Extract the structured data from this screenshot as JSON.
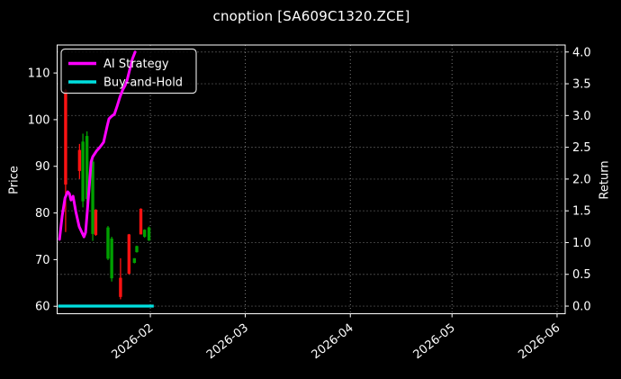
{
  "header": {
    "title": "cnoption [SA609C1320.ZCE]"
  },
  "legend": {
    "position": "upper-left",
    "items": [
      {
        "label": "AI Strategy",
        "color": "#ff00ff"
      },
      {
        "label": "Buy-and-Hold",
        "color": "#00e0e0"
      }
    ]
  },
  "colors": {
    "background": "#000000",
    "text": "#ffffff",
    "spine": "#ffffff",
    "grid": "#8a8a8a",
    "candle_up": "#00a000",
    "candle_down": "#ff1212",
    "ai_line": "#ff00ff",
    "bh_line": "#00e0e0",
    "legend_bg": "rgba(0,0,0,0.8)",
    "legend_border": "#d9d9d9"
  },
  "chart_data": {
    "type": "candlestick+line",
    "title": "cnoption [SA609C1320.ZCE]",
    "grid": "dotted, horizontal at right-axis ticks, vertical at month ticks",
    "x_axis": {
      "unit": "days since 2026-01-01",
      "domain": [
        3.5,
        153.4
      ],
      "ticks": [
        {
          "t": 31,
          "label": "2026-02"
        },
        {
          "t": 59,
          "label": "2026-03"
        },
        {
          "t": 90,
          "label": "2026-04"
        },
        {
          "t": 120,
          "label": "2026-05"
        },
        {
          "t": 151,
          "label": "2026-06"
        }
      ]
    },
    "left_axis": {
      "label": "Price",
      "ticks": [
        60,
        70,
        80,
        90,
        100,
        110
      ],
      "range": [
        58.4,
        116.0
      ]
    },
    "right_axis": {
      "label": "Return",
      "ticks": [
        0.0,
        0.5,
        1.0,
        1.5,
        2.0,
        2.5,
        3.0,
        3.5,
        4.0
      ],
      "range": [
        -0.12,
        4.11
      ]
    },
    "candles": [
      {
        "t": 6.0,
        "date": "2026-01-07",
        "o": 106.3,
        "h": 106.6,
        "l": 75.9,
        "c": 86.1
      },
      {
        "t": 10.1,
        "date": "2026-01-11",
        "o": 93.5,
        "h": 94.8,
        "l": 87.3,
        "c": 89.0
      },
      {
        "t": 11.1,
        "date": "2026-01-12",
        "o": 82.5,
        "h": 97.0,
        "l": 81.2,
        "c": 95.3
      },
      {
        "t": 12.3,
        "date": "2026-01-13",
        "o": 83.0,
        "h": 97.5,
        "l": 82.0,
        "c": 96.5
      },
      {
        "t": 14.0,
        "date": "2026-01-15",
        "o": 75.5,
        "h": 92.2,
        "l": 74.0,
        "c": 91.0
      },
      {
        "t": 14.9,
        "date": "2026-01-16",
        "o": 80.7,
        "h": 80.8,
        "l": 75.1,
        "c": 75.3
      },
      {
        "t": 18.5,
        "date": "2026-01-19",
        "o": 70.2,
        "h": 77.2,
        "l": 69.9,
        "c": 76.9
      },
      {
        "t": 19.6,
        "date": "2026-01-21",
        "o": 66.0,
        "h": 74.9,
        "l": 65.3,
        "c": 74.5
      },
      {
        "t": 22.2,
        "date": "2026-01-23",
        "o": 66.1,
        "h": 70.3,
        "l": 61.5,
        "c": 62.0
      },
      {
        "t": 24.7,
        "date": "2026-01-26",
        "o": 75.4,
        "h": 75.5,
        "l": 66.8,
        "c": 67.0
      },
      {
        "t": 26.3,
        "date": "2026-01-27",
        "o": 69.3,
        "h": 70.3,
        "l": 69.2,
        "c": 70.3
      },
      {
        "t": 27.0,
        "date": "2026-01-28",
        "o": 71.6,
        "h": 73.0,
        "l": 71.5,
        "c": 72.9
      },
      {
        "t": 28.2,
        "date": "2026-01-29",
        "o": 80.9,
        "h": 81.0,
        "l": 75.4,
        "c": 75.4
      },
      {
        "t": 29.3,
        "date": "2026-01-30",
        "o": 74.9,
        "h": 76.5,
        "l": 74.7,
        "c": 76.4
      },
      {
        "t": 30.6,
        "date": "2026-01-31",
        "o": 74.1,
        "h": 77.1,
        "l": 74.0,
        "c": 76.9
      }
    ],
    "series": [
      {
        "name": "AI Strategy",
        "axis": "right",
        "color": "#ff00ff",
        "points": [
          [
            4.2,
            1.05
          ],
          [
            5.0,
            1.42
          ],
          [
            5.8,
            1.7
          ],
          [
            6.6,
            1.8
          ],
          [
            7.1,
            1.77
          ],
          [
            7.6,
            1.67
          ],
          [
            8.2,
            1.73
          ],
          [
            9.0,
            1.49
          ],
          [
            10.0,
            1.25
          ],
          [
            11.4,
            1.09
          ],
          [
            11.9,
            1.16
          ],
          [
            12.4,
            1.49
          ],
          [
            13.0,
            1.91
          ],
          [
            13.5,
            2.27
          ],
          [
            14.0,
            2.35
          ],
          [
            15.1,
            2.44
          ],
          [
            16.1,
            2.5
          ],
          [
            17.2,
            2.58
          ],
          [
            17.7,
            2.7
          ],
          [
            18.3,
            2.84
          ],
          [
            18.8,
            2.95
          ],
          [
            19.6,
            2.99
          ],
          [
            20.4,
            3.02
          ],
          [
            21.2,
            3.15
          ],
          [
            22.0,
            3.29
          ],
          [
            22.8,
            3.4
          ],
          [
            23.6,
            3.48
          ],
          [
            24.1,
            3.55
          ],
          [
            24.9,
            3.72
          ],
          [
            25.7,
            3.89
          ],
          [
            26.5,
            4.0
          ]
        ]
      },
      {
        "name": "Buy-and-Hold",
        "axis": "right",
        "color": "#00e0e0",
        "points": [
          [
            3.8,
            0.0
          ],
          [
            32.0,
            0.0
          ]
        ]
      }
    ]
  }
}
